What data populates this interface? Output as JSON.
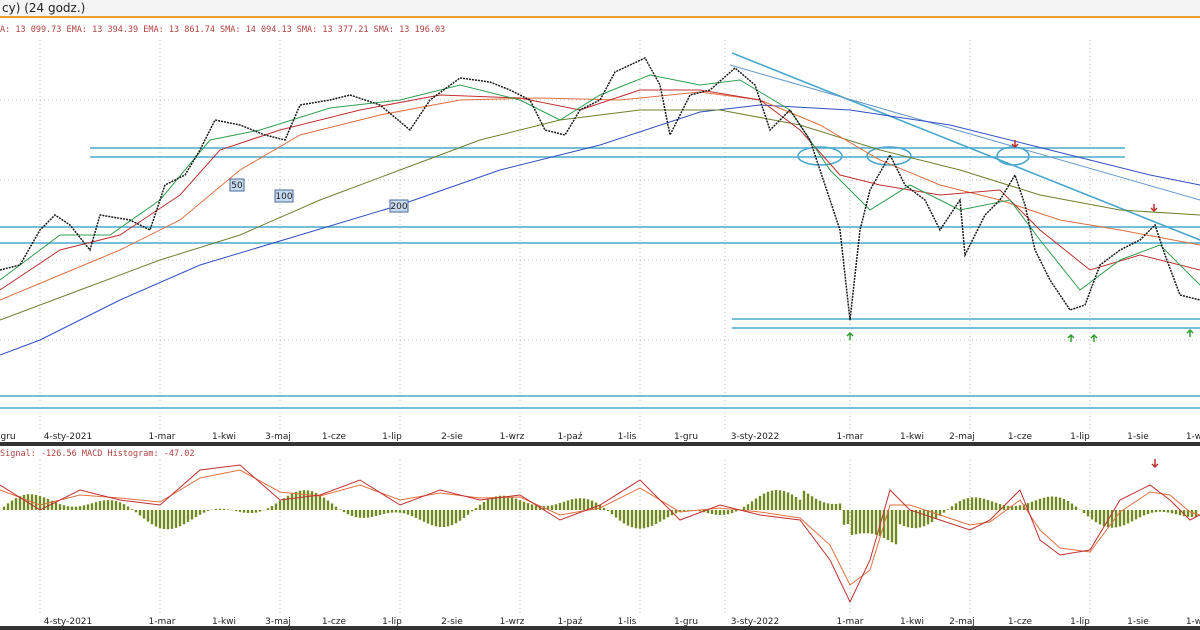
{
  "header": {
    "title": "cy) (24 godz.)"
  },
  "legend": {
    "text": "A: 13 099.73 EMA: 13 394.39 EMA: 13 861.74 SMA: 14 094.13 SMA: 13 377.21 SMA: 13 196.03"
  },
  "ma_labels": [
    "50",
    "100",
    "200"
  ],
  "dates": [
    "gru",
    "4-sty-2021",
    "1-mar",
    "1-kwi",
    "3-maj",
    "1-cze",
    "1-lip",
    "2-sie",
    "1-wrz",
    "1-paź",
    "1-lis",
    "1-gru",
    "3-sty-2022",
    "1-mar",
    "1-kwi",
    "2-maj",
    "1-cze",
    "1-lip",
    "1-sie",
    "1-w"
  ],
  "macd_legend": {
    "text": "Signal: -126.56 MACD Histogram: -47.02"
  }
}
